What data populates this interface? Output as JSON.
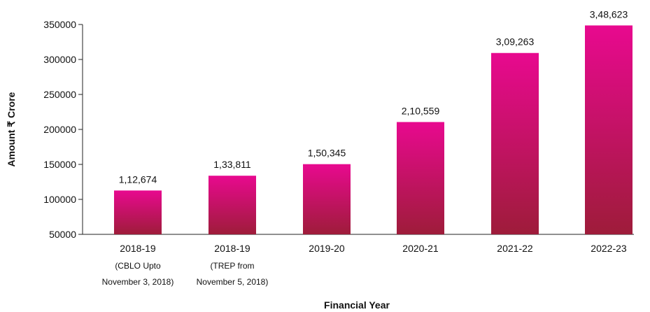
{
  "chart_data": {
    "type": "bar",
    "title": "",
    "xlabel": "Financial Year",
    "ylabel": "Amount ₹ Crore",
    "ylim": [
      50000,
      350000
    ],
    "yticks": [
      50000,
      100000,
      150000,
      200000,
      250000,
      300000,
      350000
    ],
    "ytick_labels": [
      "50000",
      "100000",
      "150000",
      "200000",
      "250000",
      "300000",
      "350000"
    ],
    "grid": false,
    "categories": [
      {
        "label": "2018-19",
        "sub": [
          "(CBLO Upto",
          "November 3, 2018)"
        ]
      },
      {
        "label": "2018-19",
        "sub": [
          "(TREP from",
          "November 5, 2018)"
        ]
      },
      {
        "label": "2019-20",
        "sub": []
      },
      {
        "label": "2020-21",
        "sub": []
      },
      {
        "label": "2021-22",
        "sub": []
      },
      {
        "label": "2022-23",
        "sub": []
      }
    ],
    "values": [
      112674,
      133811,
      150345,
      210559,
      309263,
      348623
    ],
    "value_labels": [
      "1,12,674",
      "1,33,811",
      "1,50,345",
      "2,10,559",
      "3,09,263",
      "3,48,623"
    ],
    "colors": {
      "bar_top": "#e8098f",
      "bar_bottom": "#9e1c3a",
      "axis": "#222222"
    }
  }
}
